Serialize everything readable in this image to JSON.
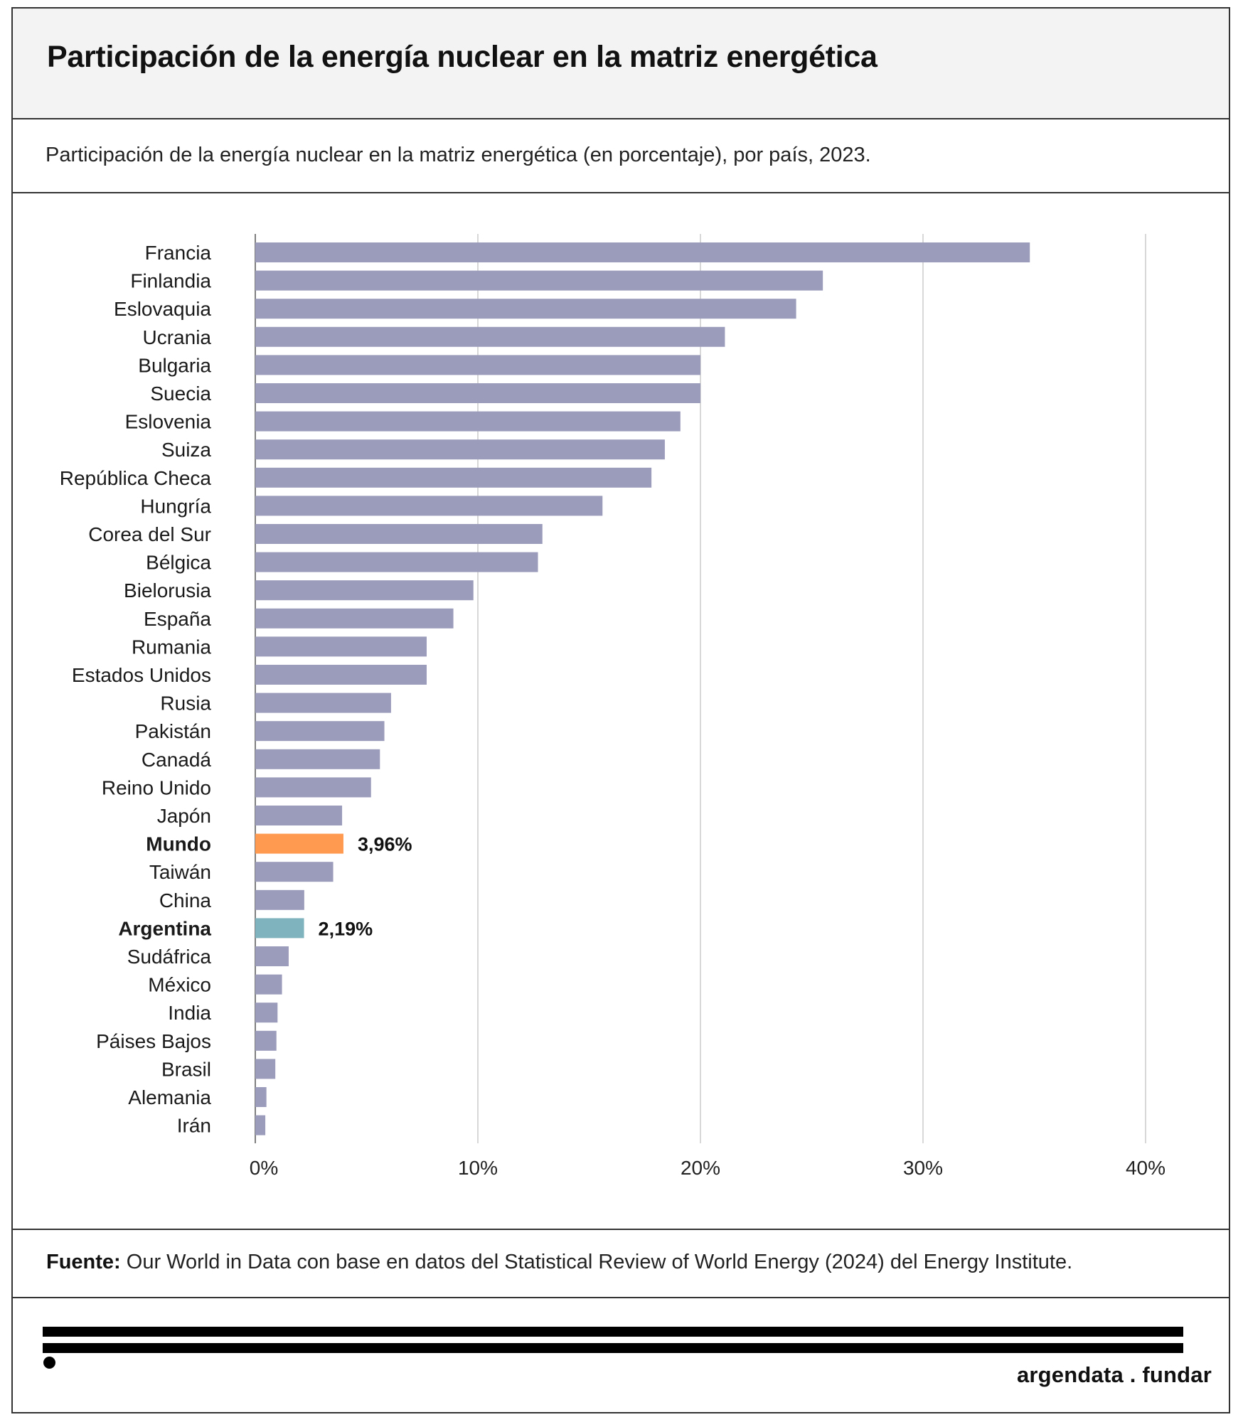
{
  "header": {
    "title": "Participación de la energía nuclear en la matriz energética"
  },
  "subtitle": "Participación de la energía nuclear en la matriz energética (en porcentaje), por país, 2023.",
  "source": {
    "label": "Fuente:",
    "text": " Our World in Data con base en datos del Statistical Review of World Energy (2024) del Energy Institute."
  },
  "brand": {
    "logo_text": "argendata . fundar"
  },
  "colors": {
    "default_bar": "#9b9bbb",
    "mundo_bar": "#ff9a50",
    "argentina_bar": "#7fb3bd",
    "grid": "#cccccc"
  },
  "chart_data": {
    "type": "bar",
    "orientation": "horizontal",
    "xlim": [
      0,
      40
    ],
    "ticks": [
      "0%",
      "10%",
      "20%",
      "30%",
      "40%"
    ],
    "tick_values": [
      0,
      10,
      20,
      30,
      40
    ],
    "categories": [
      "Francia",
      "Finlandia",
      "Eslovaquia",
      "Ucrania",
      "Bulgaria",
      "Suecia",
      "Eslovenia",
      "Suiza",
      "República Checa",
      "Hungría",
      "Corea del Sur",
      "Bélgica",
      "Bielorusia",
      "España",
      "Rumania",
      "Estados Unidos",
      "Rusia",
      "Pakistán",
      "Canadá",
      "Reino Unido",
      "Japón",
      "Mundo",
      "Taiwán",
      "China",
      "Argentina",
      "Sudáfrica",
      "México",
      "India",
      "Páises Bajos",
      "Brasil",
      "Alemania",
      "Irán"
    ],
    "values": [
      34.8,
      25.5,
      24.3,
      21.1,
      20.0,
      20.0,
      19.1,
      18.4,
      17.8,
      15.6,
      12.9,
      12.7,
      9.8,
      8.9,
      7.7,
      7.7,
      6.1,
      5.8,
      5.6,
      5.2,
      3.9,
      3.96,
      3.5,
      2.2,
      2.19,
      1.5,
      1.2,
      1.0,
      0.95,
      0.9,
      0.5,
      0.45
    ],
    "highlights": [
      {
        "category": "Mundo",
        "label": "3,96%",
        "color": "#ff9a50"
      },
      {
        "category": "Argentina",
        "label": "2,19%",
        "color": "#7fb3bd"
      }
    ],
    "grid": true
  }
}
